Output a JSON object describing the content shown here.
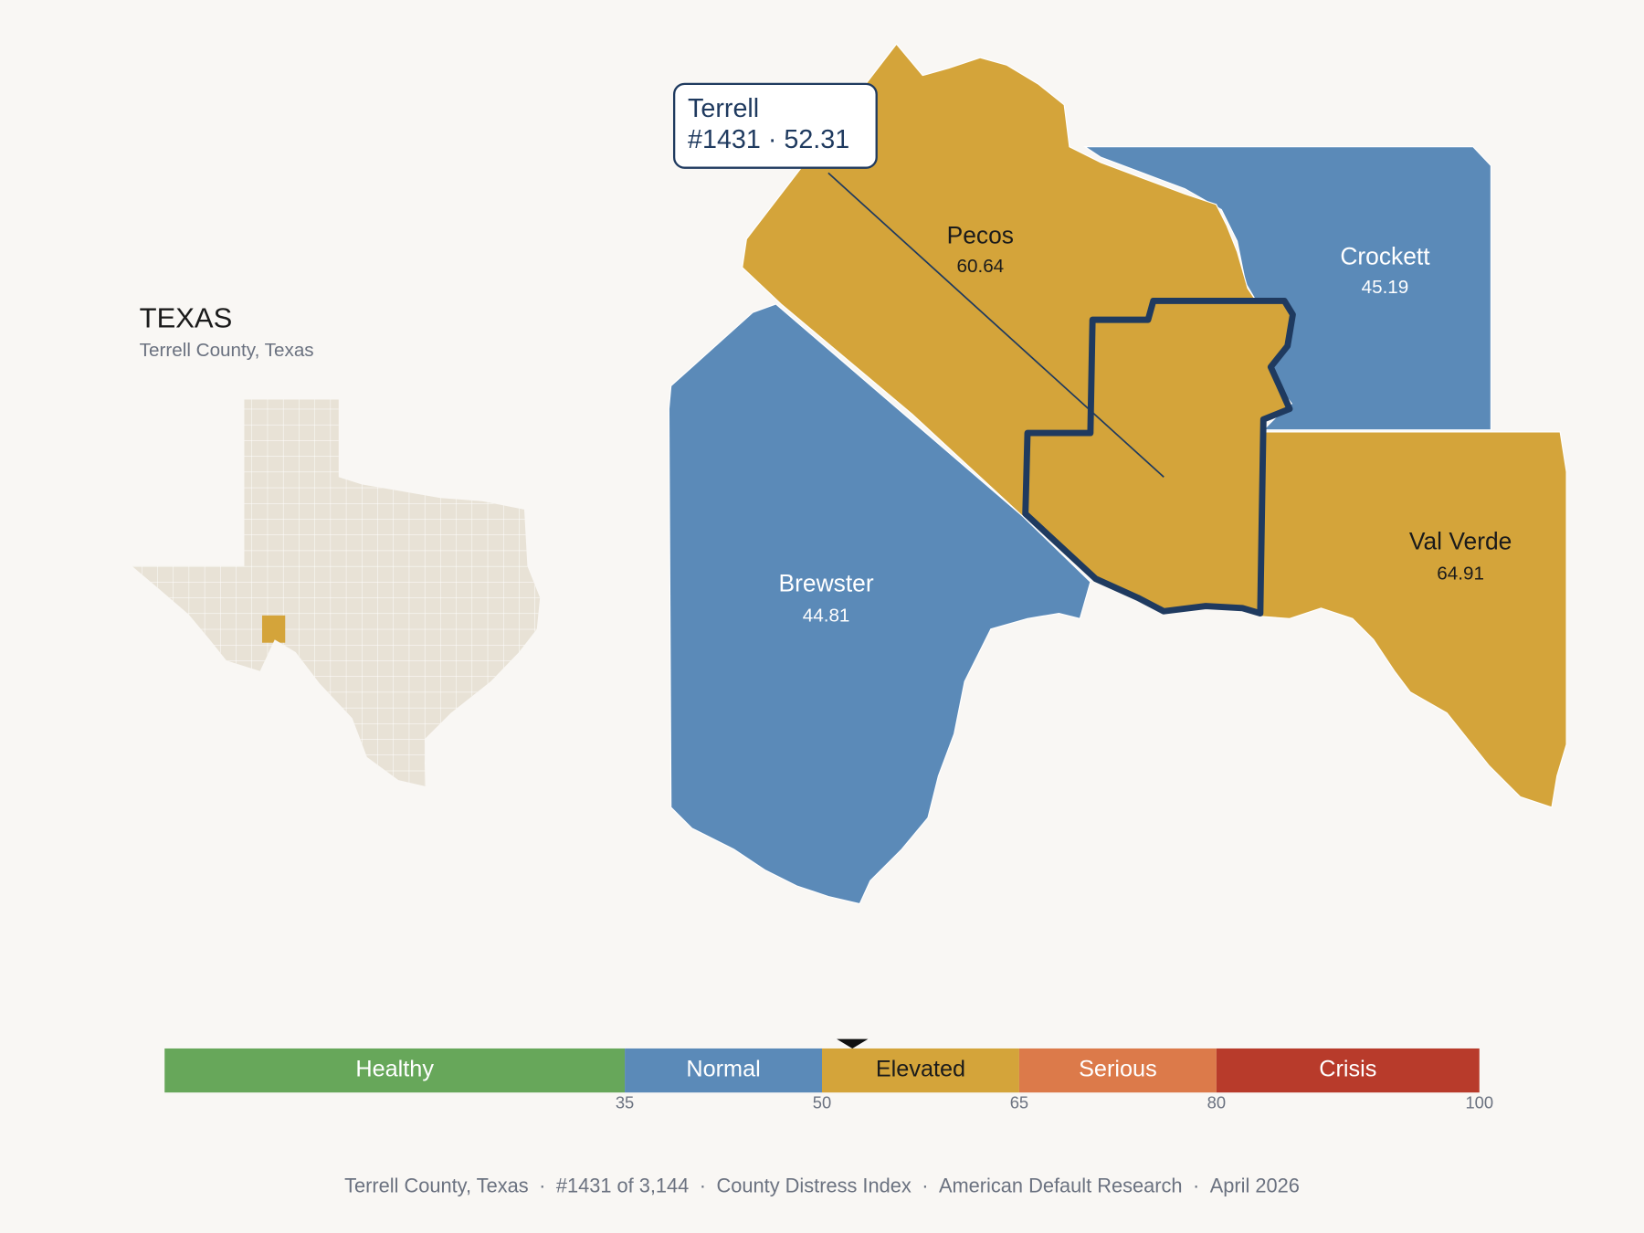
{
  "inset": {
    "title": "TEXAS",
    "subtitle": "Terrell County, Texas"
  },
  "tooltip": {
    "name": "Terrell",
    "rank_label": "#1431",
    "separator": "·",
    "score": 52.31
  },
  "counties": [
    {
      "name": "Pecos",
      "value": 60.64
    },
    {
      "name": "Crockett",
      "value": 45.19
    },
    {
      "name": "Brewster",
      "value": 44.81
    },
    {
      "name": "Val Verde",
      "value": 64.91
    }
  ],
  "scale": {
    "lim": [
      0,
      100
    ],
    "ticks": [
      35,
      50,
      65,
      80,
      100
    ],
    "bands": [
      {
        "label": "Healthy",
        "color": "#67a75a",
        "text_color": "#ffffff"
      },
      {
        "label": "Normal",
        "color": "#5b8ab8",
        "text_color": "#ffffff"
      },
      {
        "label": "Elevated",
        "color": "#d4a43a",
        "text_color": "#1b1b1b"
      },
      {
        "label": "Serious",
        "color": "#dc7a4a",
        "text_color": "#ffffff"
      },
      {
        "label": "Crisis",
        "color": "#b83b2b",
        "text_color": "#ffffff"
      }
    ]
  },
  "footer": {
    "parts": [
      "Terrell County, Texas",
      "#1431 of 3,144",
      "County Distress Index",
      "American Default Research",
      "April 2026"
    ],
    "separator": "·"
  }
}
